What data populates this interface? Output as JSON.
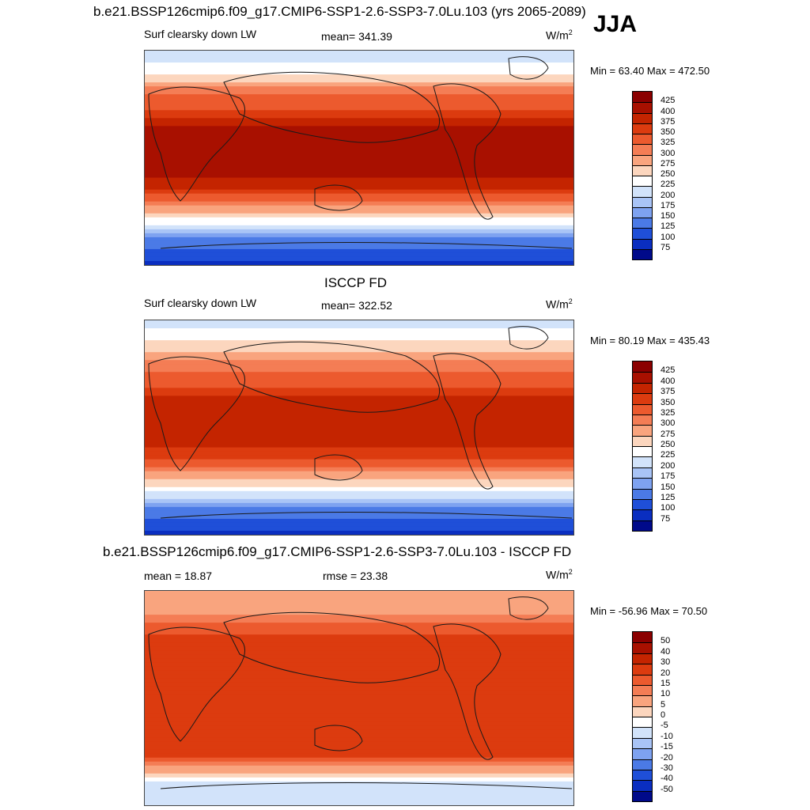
{
  "figure": {
    "run_title": "b.e21.BSSP126cmip6.f09_g17.CMIP6-SSP1-2.6-SSP3-7.0Lu.103 (yrs 2065-2089)",
    "season": "JJA",
    "obs_title": "ISCCP FD",
    "diff_title": "b.e21.BSSP126cmip6.f09_g17.CMIP6-SSP1-2.6-SSP3-7.0Lu.103 - ISCCP FD"
  },
  "chart_data": [
    {
      "type": "heatmap",
      "panel": "model",
      "variable": "Surf clearsky down LW",
      "mean_label": "mean= 341.39",
      "unit": "W/m",
      "unit_sup": "2",
      "minmax_label": "Min =  63.40 Max = 472.50",
      "colorbar_levels": [
        "425",
        "400",
        "375",
        "350",
        "325",
        "300",
        "275",
        "250",
        "225",
        "200",
        "175",
        "150",
        "125",
        "100",
        "75"
      ],
      "colorbar_colors": [
        "#8b0000",
        "#a81000",
        "#c42400",
        "#dc3b0f",
        "#ec5a2e",
        "#f47d55",
        "#f9a47e",
        "#fcd6be",
        "#ffffff",
        "#d2e3fa",
        "#a9c4f6",
        "#7ea2f0",
        "#4b7ae6",
        "#1f4fd8",
        "#0a2ec0",
        "#000a8a"
      ],
      "lat_profile": [
        [
          90,
          200
        ],
        [
          70,
          250
        ],
        [
          55,
          320
        ],
        [
          40,
          350
        ],
        [
          25,
          400
        ],
        [
          10,
          425
        ],
        [
          -10,
          415
        ],
        [
          -25,
          375
        ],
        [
          -40,
          300
        ],
        [
          -50,
          250
        ],
        [
          -60,
          200
        ],
        [
          -70,
          140
        ],
        [
          -90,
          90
        ]
      ]
    },
    {
      "type": "heatmap",
      "panel": "obs",
      "variable": "Surf clearsky down LW",
      "mean_label": "mean= 322.52",
      "unit": "W/m",
      "unit_sup": "2",
      "minmax_label": "Min =  80.19 Max = 435.43",
      "colorbar_levels": [
        "425",
        "400",
        "375",
        "350",
        "325",
        "300",
        "275",
        "250",
        "225",
        "200",
        "175",
        "150",
        "125",
        "100",
        "75"
      ],
      "colorbar_colors": [
        "#8b0000",
        "#a81000",
        "#c42400",
        "#dc3b0f",
        "#ec5a2e",
        "#f47d55",
        "#f9a47e",
        "#fcd6be",
        "#ffffff",
        "#d2e3fa",
        "#a9c4f6",
        "#7ea2f0",
        "#4b7ae6",
        "#1f4fd8",
        "#0a2ec0",
        "#000a8a"
      ],
      "lat_profile": [
        [
          90,
          210
        ],
        [
          70,
          255
        ],
        [
          55,
          305
        ],
        [
          40,
          335
        ],
        [
          25,
          375
        ],
        [
          10,
          400
        ],
        [
          -10,
          390
        ],
        [
          -25,
          355
        ],
        [
          -40,
          290
        ],
        [
          -50,
          245
        ],
        [
          -60,
          195
        ],
        [
          -70,
          140
        ],
        [
          -90,
          90
        ]
      ]
    },
    {
      "type": "heatmap",
      "panel": "difference",
      "mean_label": "mean =  18.87",
      "rmse_label": "rmse =  23.38",
      "unit": "W/m",
      "unit_sup": "2",
      "minmax_label": "Min = -56.96 Max =  70.50",
      "colorbar_levels": [
        "50",
        "40",
        "30",
        "20",
        "15",
        "10",
        "5",
        "0",
        "-5",
        "-10",
        "-15",
        "-20",
        "-30",
        "-40",
        "-50"
      ],
      "colorbar_colors": [
        "#8b0000",
        "#a81000",
        "#c42400",
        "#dc3b0f",
        "#ec5a2e",
        "#f47d55",
        "#f9a47e",
        "#fcd6be",
        "#ffffff",
        "#d2e3fa",
        "#a9c4f6",
        "#7ea2f0",
        "#4b7ae6",
        "#1f4fd8",
        "#0a2ec0",
        "#000a8a"
      ],
      "lat_profile": [
        [
          90,
          5
        ],
        [
          70,
          10
        ],
        [
          50,
          22
        ],
        [
          30,
          25
        ],
        [
          10,
          25
        ],
        [
          -10,
          22
        ],
        [
          -30,
          22
        ],
        [
          -50,
          20
        ],
        [
          -60,
          8
        ],
        [
          -70,
          -5
        ],
        [
          -90,
          -10
        ]
      ]
    }
  ]
}
